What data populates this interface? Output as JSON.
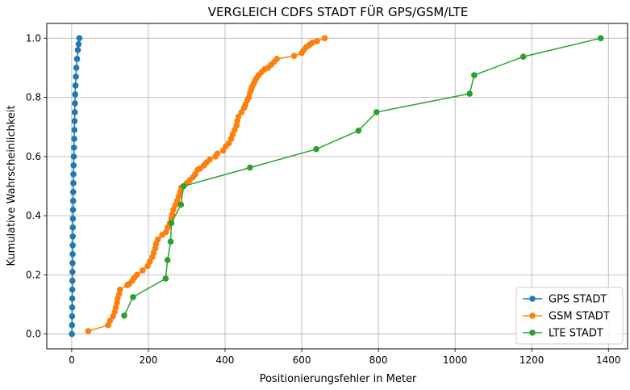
{
  "chart_data": {
    "type": "line",
    "title": "VERGLEICH CDFS STADT FÜR GPS/GSM/LTE",
    "xlabel": "Positionierungsfehler in Meter",
    "ylabel": "Kumulative Wahrscheinlichkeit",
    "xlim": [
      -65,
      1450
    ],
    "ylim": [
      -0.05,
      1.05
    ],
    "xticks": [
      0,
      200,
      400,
      600,
      800,
      1000,
      1200,
      1400
    ],
    "yticks": [
      0.0,
      0.2,
      0.4,
      0.6,
      0.8,
      1.0
    ],
    "xtick_labels": [
      "0",
      "200",
      "400",
      "600",
      "800",
      "1000",
      "1200",
      "1400"
    ],
    "ytick_labels": [
      "0.0",
      "0.2",
      "0.4",
      "0.6",
      "0.8",
      "1.0"
    ],
    "grid": true,
    "legend_position": "lower right",
    "series": [
      {
        "name": "GPS STADT",
        "color": "#1f77b4",
        "x": [
          0.5,
          0.8,
          1.0,
          1.2,
          1.4,
          1.6,
          1.8,
          2.0,
          2.2,
          2.4,
          2.6,
          2.8,
          3.0,
          3.2,
          3.5,
          3.8,
          4.0,
          4.3,
          4.6,
          5.0,
          5.5,
          6.0,
          6.5,
          7.0,
          7.5,
          8.0,
          8.5,
          9.0,
          10.0,
          11.0,
          12.0,
          14.0,
          16.0,
          18.0,
          20.0
        ],
        "y": [
          0.0,
          0.03,
          0.06,
          0.09,
          0.12,
          0.15,
          0.18,
          0.21,
          0.24,
          0.27,
          0.3,
          0.33,
          0.36,
          0.39,
          0.42,
          0.45,
          0.48,
          0.51,
          0.54,
          0.57,
          0.6,
          0.63,
          0.66,
          0.69,
          0.72,
          0.75,
          0.78,
          0.81,
          0.84,
          0.87,
          0.9,
          0.93,
          0.96,
          0.98,
          1.0
        ]
      },
      {
        "name": "GSM STADT",
        "color": "#ff7f0e",
        "x": [
          43,
          95,
          100,
          108,
          112,
          115,
          118,
          120,
          124,
          126,
          145,
          150,
          158,
          163,
          170,
          185,
          198,
          204,
          210,
          214,
          218,
          220,
          225,
          236,
          246,
          250,
          256,
          260,
          262,
          265,
          270,
          275,
          279,
          283,
          286,
          292,
          300,
          308,
          316,
          322,
          328,
          335,
          345,
          352,
          360,
          375,
          380,
          395,
          402,
          410,
          416,
          420,
          425,
          430,
          432,
          435,
          443,
          450,
          453,
          458,
          462,
          465,
          468,
          470,
          474,
          478,
          482,
          488,
          495,
          503,
          512,
          520,
          528,
          535,
          580,
          600,
          605,
          612,
          618,
          622,
          628,
          640,
          660
        ],
        "y": [
          0.01,
          0.03,
          0.045,
          0.06,
          0.075,
          0.09,
          0.105,
          0.12,
          0.135,
          0.15,
          0.165,
          0.17,
          0.18,
          0.19,
          0.2,
          0.215,
          0.23,
          0.245,
          0.26,
          0.275,
          0.29,
          0.305,
          0.32,
          0.335,
          0.345,
          0.36,
          0.375,
          0.39,
          0.405,
          0.42,
          0.435,
          0.45,
          0.465,
          0.48,
          0.495,
          0.5,
          0.51,
          0.52,
          0.53,
          0.54,
          0.555,
          0.56,
          0.57,
          0.58,
          0.59,
          0.6,
          0.61,
          0.62,
          0.635,
          0.645,
          0.66,
          0.675,
          0.69,
          0.705,
          0.72,
          0.735,
          0.75,
          0.765,
          0.775,
          0.79,
          0.8,
          0.815,
          0.825,
          0.835,
          0.845,
          0.855,
          0.865,
          0.875,
          0.885,
          0.895,
          0.9,
          0.91,
          0.92,
          0.93,
          0.94,
          0.95,
          0.96,
          0.97,
          0.975,
          0.98,
          0.985,
          0.99,
          1.0
        ]
      },
      {
        "name": "LTE STADT",
        "color": "#2ca02c",
        "x": [
          137,
          160,
          245,
          250,
          258,
          260,
          285,
          292,
          465,
          638,
          748,
          795,
          1038,
          1050,
          1178,
          1380
        ],
        "y": [
          0.0625,
          0.125,
          0.1875,
          0.25,
          0.3125,
          0.375,
          0.4375,
          0.5,
          0.5625,
          0.625,
          0.6875,
          0.75,
          0.8125,
          0.875,
          0.9375,
          1.0
        ]
      }
    ]
  }
}
